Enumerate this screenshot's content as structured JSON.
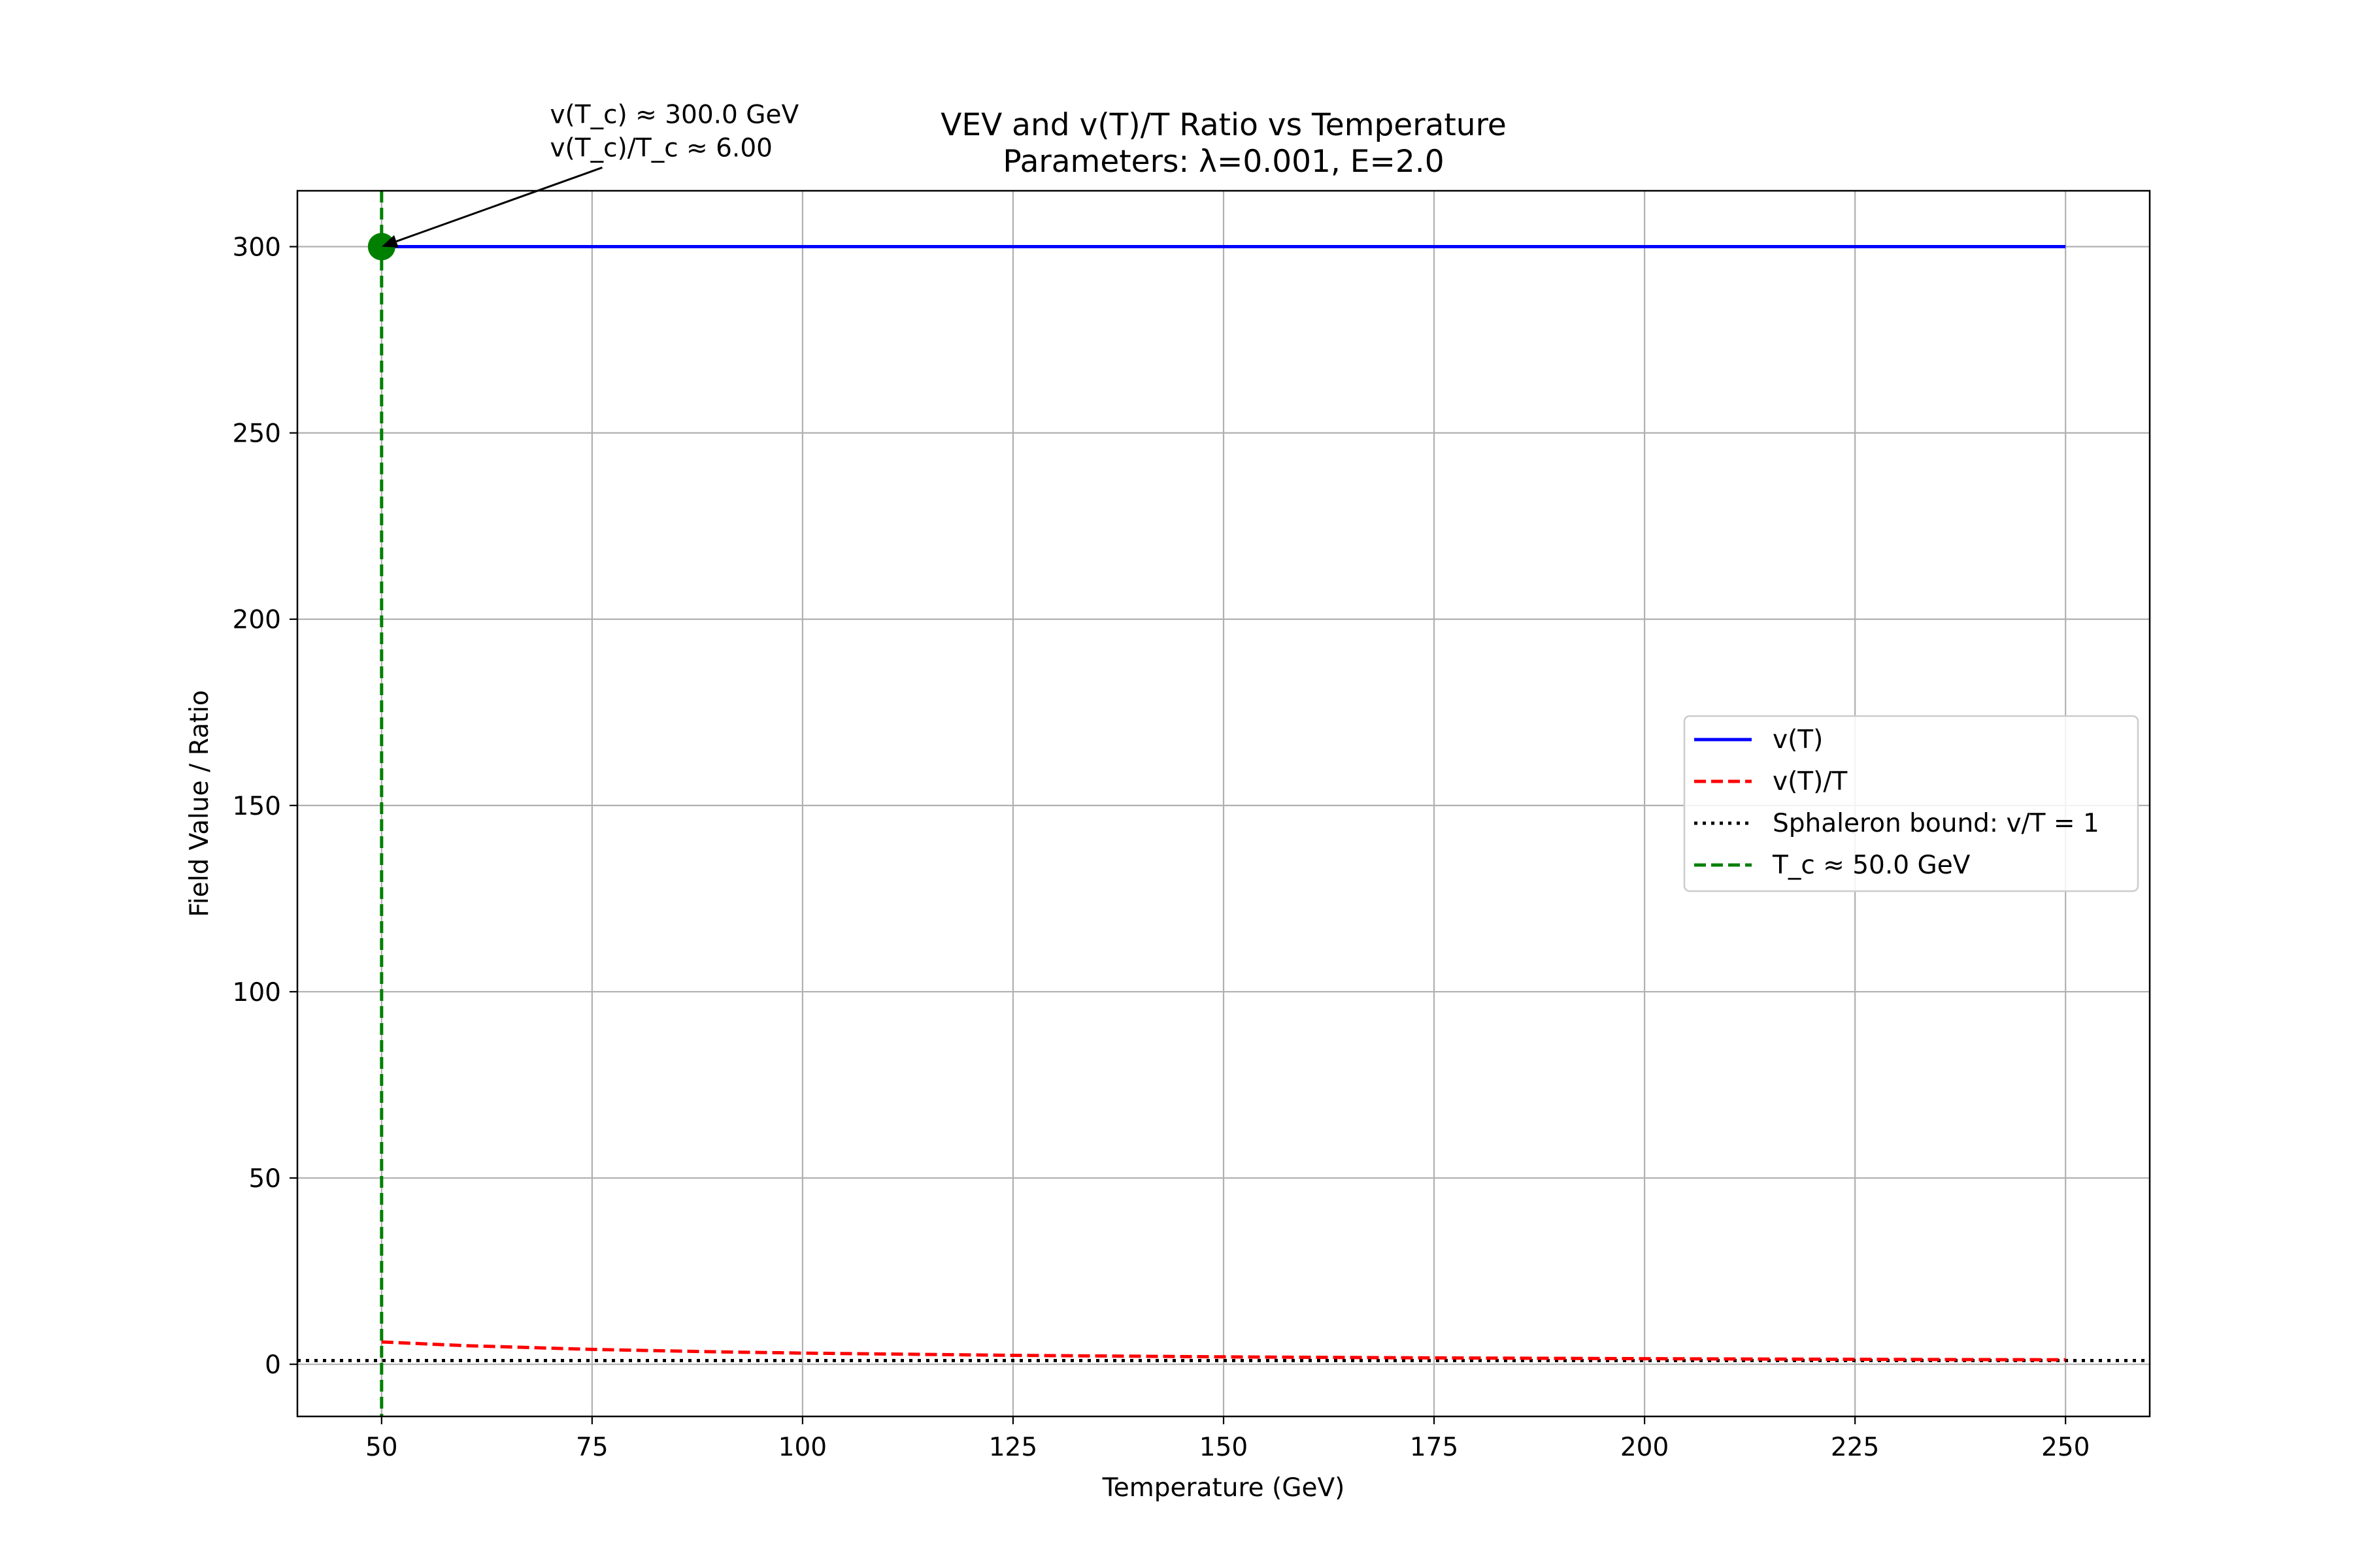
{
  "chart_data": {
    "type": "line",
    "title": "VEV and v(T)/T Ratio vs Temperature",
    "subtitle": "Parameters: λ=0.001, E=2.0",
    "xlabel": "Temperature (GeV)",
    "ylabel": "Field Value / Ratio",
    "xlim": [
      40,
      260
    ],
    "ylim": [
      -14,
      315
    ],
    "xticks": [
      50,
      75,
      100,
      125,
      150,
      175,
      200,
      225,
      250
    ],
    "yticks": [
      0,
      50,
      100,
      150,
      200,
      250,
      300
    ],
    "grid": true,
    "legend_position": "center-right",
    "series": [
      {
        "name": "v(T)",
        "style": "solid",
        "color": "#0000ff",
        "x": [
          50,
          75,
          100,
          125,
          150,
          175,
          200,
          225,
          250
        ],
        "y": [
          300,
          300,
          300,
          300,
          300,
          300,
          300,
          300,
          300
        ]
      },
      {
        "name": "v(T)/T",
        "style": "dashed",
        "color": "#ff0000",
        "x": [
          50,
          60,
          75,
          90,
          100,
          125,
          150,
          175,
          200,
          225,
          250
        ],
        "y": [
          6.0,
          5.0,
          4.0,
          3.33,
          3.0,
          2.4,
          2.0,
          1.71,
          1.5,
          1.33,
          1.2
        ]
      }
    ],
    "reference_lines": [
      {
        "name": "Sphaleron bound: v/T = 1",
        "orientation": "horizontal",
        "value": 1,
        "style": "dotted",
        "color": "#000000"
      },
      {
        "name": "T_c ≈ 50.0 GeV",
        "orientation": "vertical",
        "value": 50,
        "style": "dashed",
        "color": "#008000"
      }
    ],
    "marker": {
      "x": 50,
      "y": 300,
      "color": "#008000"
    },
    "annotation": {
      "lines": [
        "v(T_c) ≈ 300.0 GeV",
        "v(T_c)/T_c ≈ 6.00"
      ],
      "text_x": 70,
      "text_y": 330,
      "arrow_to": {
        "x": 50,
        "y": 300
      }
    }
  }
}
